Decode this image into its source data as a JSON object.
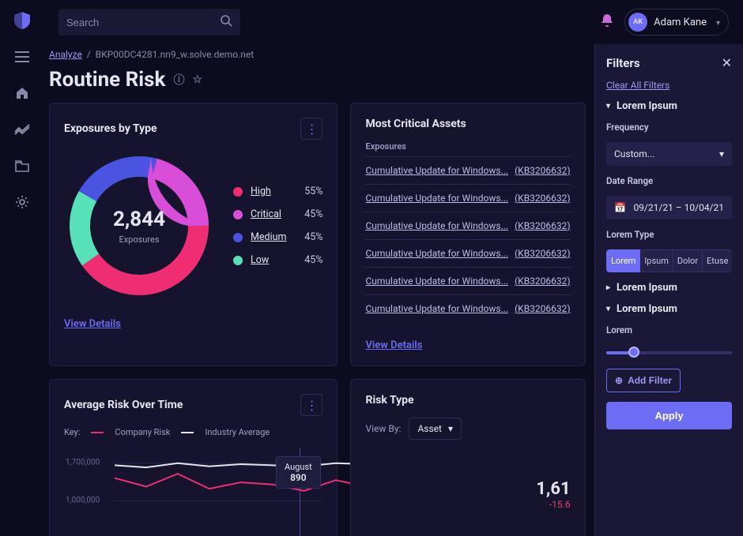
{
  "colors": {
    "bg": "#0d0b1f",
    "panel": "#15132e",
    "panel2": "#1b1837",
    "border": "#24224a",
    "accent": "#6d6cf5",
    "text": "#e5e5f0",
    "muted": "#8a88a8"
  },
  "topbar": {
    "search_placeholder": "Search",
    "user_initials": "AK",
    "user_name": "Adam Kane"
  },
  "breadcrumbs": {
    "root": "Analyze",
    "leaf": "BKP00DC4281.nn9_w.solve.demo.net"
  },
  "page_title": "Routine Risk",
  "exposures_card": {
    "title": "Exposures by Type",
    "total_value": "2,844",
    "total_label": "Exposures",
    "view_details": "View Details",
    "donut": {
      "type": "donut",
      "background_color": "#15132e",
      "ring_thickness": 26,
      "slices": [
        {
          "label": "High",
          "pct": 55,
          "color": "#ef2d73"
        },
        {
          "label": "Critical",
          "pct": 45,
          "color": "#d94ed8"
        },
        {
          "label": "Medium",
          "pct": 45,
          "color": "#4a54e1"
        },
        {
          "label": "Low",
          "pct": 45,
          "color": "#58e0b8"
        }
      ],
      "arc_spans_deg": [
        {
          "start": -80,
          "end": 145,
          "color": "#ef2d73"
        },
        {
          "start": 145,
          "end": 210,
          "color": "#58e0b8"
        },
        {
          "start": 210,
          "end": 285,
          "color": "#4a54e1"
        },
        {
          "start": 285,
          "end": 360,
          "color": "#d94ed8"
        },
        {
          "start": 0,
          "end": -80,
          "color": "#d94ed8"
        }
      ]
    },
    "legend_rows": [
      {
        "label": "High",
        "pct": "55%",
        "color": "#ef2d73"
      },
      {
        "label": "Critical",
        "pct": "45%",
        "color": "#d94ed8"
      },
      {
        "label": "Medium",
        "pct": "45%",
        "color": "#4a54e1"
      },
      {
        "label": "Low",
        "pct": "45%",
        "color": "#58e0b8"
      }
    ]
  },
  "critical_card": {
    "title": "Most Critical Assets",
    "column_header": "Exposures",
    "rows": [
      {
        "name": "Cumulative Update for Windows...",
        "kb": "(KB3206632)"
      },
      {
        "name": "Cumulative Update for Windows...",
        "kb": "(KB3206632)"
      },
      {
        "name": "Cumulative Update for Windows...",
        "kb": "(KB3206632)"
      },
      {
        "name": "Cumulative Update for Windows...",
        "kb": "(KB3206632)"
      },
      {
        "name": "Cumulative Update for Windows...",
        "kb": "(KB3206632)"
      },
      {
        "name": "Cumulative Update for Windows...",
        "kb": "(KB3206632)"
      }
    ],
    "view_details": "View Details"
  },
  "risk_time_card": {
    "title": "Average Risk Over Time",
    "key_label": "Key:",
    "series": [
      {
        "label": "Company Risk",
        "color": "#ef2d73",
        "style": "line"
      },
      {
        "label": "Industry Average",
        "color": "#e5e5f0",
        "style": "line"
      }
    ],
    "chart": {
      "type": "line",
      "ylim": [
        0,
        2000000
      ],
      "yticks": [
        {
          "value": 1700000,
          "label": "1,700,000"
        },
        {
          "value": 1000000,
          "label": "1,000,000"
        }
      ],
      "grid_color": "#24224a",
      "series_data": {
        "company_risk": {
          "color": "#ef2d73",
          "points": [
            920,
            880,
            940,
            870,
            900,
            890,
            860,
            910,
            880
          ]
        },
        "industry_avg": {
          "color": "#e5e5f0",
          "points": [
            980,
            970,
            990,
            975,
            985,
            980,
            975,
            990,
            985
          ]
        }
      },
      "tooltip": {
        "x_label": "August",
        "value": "890"
      }
    }
  },
  "risk_type_card": {
    "title": "Risk Type",
    "view_by_label": "View By:",
    "view_by_value": "Asset",
    "stat_value": "1,61",
    "stat_delta": "-15.6",
    "delta_color": "#ef3d5d"
  },
  "filters": {
    "title": "Filters",
    "clear_all": "Clear All Filters",
    "sections": {
      "s1": {
        "title": "Lorem Ipsum",
        "expanded": true
      },
      "s2": {
        "title": "Lorem Ipsum",
        "expanded": false
      },
      "s3": {
        "title": "Lorem Ipsum",
        "expanded": true
      }
    },
    "frequency_label": "Frequency",
    "frequency_value": "Custom...",
    "daterange_label": "Date Range",
    "daterange_value": "09/21/21 – 10/04/21",
    "type_label": "Lorem Type",
    "type_options": [
      "Lorem",
      "Ipsum",
      "Dolor",
      "Etuse"
    ],
    "type_active_index": 0,
    "slider_label": "Lorem",
    "slider_pct": 22,
    "add_filter_label": "Add Filter",
    "apply_label": "Apply"
  }
}
